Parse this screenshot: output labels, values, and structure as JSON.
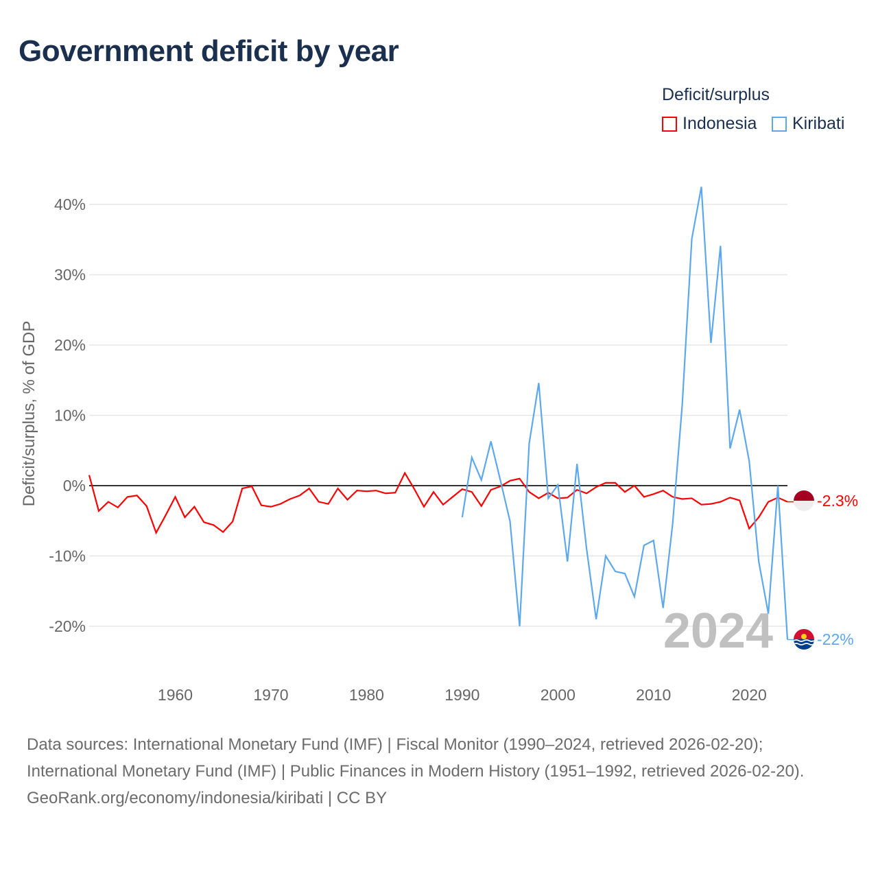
{
  "title": "Government deficit by year",
  "legend": {
    "title": "Deficit/surplus",
    "items": [
      {
        "label": "Indonesia",
        "color": "#ff0000"
      },
      {
        "label": "Kiribati",
        "color": "#5ca8ee"
      }
    ]
  },
  "chart_data": {
    "type": "line",
    "title": "Government deficit by year",
    "xlabel": "",
    "ylabel": "Deficit/surplus, % of GDP",
    "xlim": [
      1951,
      2024
    ],
    "ylim": [
      -25,
      45
    ],
    "x_ticks": [
      1960,
      1970,
      1980,
      1990,
      2000,
      2010,
      2020
    ],
    "y_ticks": [
      {
        "value": 40,
        "label": "40%"
      },
      {
        "value": 30,
        "label": "30%"
      },
      {
        "value": 20,
        "label": "20%"
      },
      {
        "value": 10,
        "label": "10%"
      },
      {
        "value": 0,
        "label": "0%"
      },
      {
        "value": -10,
        "label": "-10%"
      },
      {
        "value": -20,
        "label": "-20%"
      }
    ],
    "grid": true,
    "legend_position": "top-right",
    "year_watermark": "2024",
    "series": [
      {
        "name": "Indonesia",
        "color": "#ff0000",
        "end_label": "-2.3%",
        "start_year": 1951,
        "values": [
          1.5,
          -3.6,
          -2.3,
          -3.1,
          -1.6,
          -1.4,
          -2.9,
          -6.7,
          -4.2,
          -1.6,
          -4.5,
          -3.0,
          -5.2,
          -5.6,
          -6.6,
          -5.1,
          -0.4,
          -0.1,
          -2.8,
          -3.0,
          -2.6,
          -1.9,
          -1.4,
          -0.4,
          -2.3,
          -2.6,
          -0.4,
          -2.0,
          -0.7,
          -0.8,
          -0.7,
          -1.1,
          -1.0,
          1.8,
          -0.5,
          -3.0,
          -0.9,
          -2.7,
          -1.6,
          -0.5,
          -0.9,
          -2.9,
          -0.6,
          -0.1,
          0.7,
          1.0,
          -0.9,
          -1.8,
          -1.0,
          -1.8,
          -1.7,
          -0.6,
          -1.1,
          -0.2,
          0.4,
          0.4,
          -0.9,
          0.0,
          -1.6,
          -1.2,
          -0.7,
          -1.6,
          -1.9,
          -1.8,
          -2.7,
          -2.6,
          -2.3,
          -1.7,
          -2.1,
          -6.1,
          -4.5,
          -2.3,
          -1.7,
          -2.3
        ]
      },
      {
        "name": "Kiribati",
        "color": "#5ca8ee",
        "end_label": "-22%",
        "start_year": 1990,
        "values": [
          -4.5,
          4.0,
          0.8,
          6.3,
          0.7,
          -5.1,
          -20.0,
          6.0,
          14.6,
          -1.8,
          0.1,
          -10.8,
          3.1,
          -9.0,
          -19.0,
          -10.0,
          -12.2,
          -12.5,
          -15.8,
          -8.5,
          -7.8,
          -17.4,
          -5.4,
          11.5,
          35.1,
          42.5,
          20.3,
          34.1,
          5.3,
          10.8,
          3.5,
          -10.8,
          -18.2,
          0.0,
          -21.9
        ]
      }
    ]
  },
  "footer": {
    "sources": "Data sources: International Monetary Fund (IMF) | Fiscal Monitor (1990–2024, retrieved 2026-02-20); International Monetary Fund (IMF) | Public Finances in Modern History (1951–1992, retrieved 2026-02-20).",
    "link": "GeoRank.org/economy/indonesia/kiribati | CC BY"
  }
}
